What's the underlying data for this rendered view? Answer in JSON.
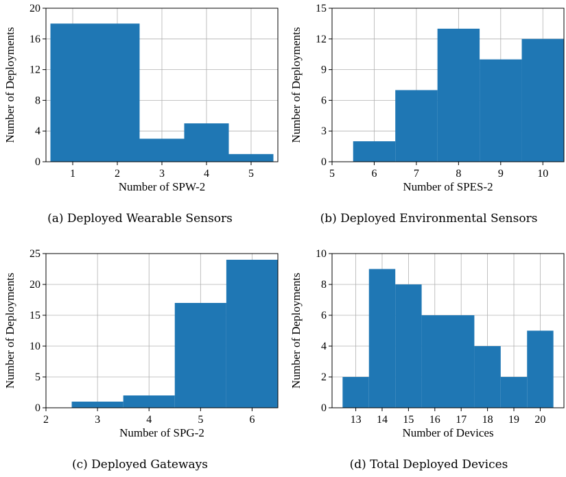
{
  "chart_data": [
    {
      "type": "bar",
      "x": [
        1,
        2,
        3,
        4,
        5
      ],
      "values": [
        18,
        18,
        3,
        5,
        1
      ],
      "xlabel": "Number of SPW-2",
      "ylabel": "Number of Deployments",
      "xlim": [
        0.4,
        5.6
      ],
      "ylim": [
        0,
        20
      ],
      "xticks": [
        1,
        2,
        3,
        4,
        5
      ],
      "yticks": [
        0,
        4,
        8,
        12,
        16,
        20
      ],
      "grid": true,
      "color": "#1f77b4",
      "caption": "(a) Deployed Wearable Sensors"
    },
    {
      "type": "bar",
      "x": [
        6,
        7,
        8,
        9,
        10
      ],
      "values": [
        2,
        7,
        13,
        10,
        12
      ],
      "xlabel": "Number of SPES-2",
      "ylabel": "Number of Deployments",
      "xlim": [
        5,
        10.5
      ],
      "ylim": [
        0,
        15
      ],
      "xticks": [
        5,
        6,
        7,
        8,
        9,
        10
      ],
      "yticks": [
        0,
        3,
        6,
        9,
        12,
        15
      ],
      "grid": true,
      "color": "#1f77b4",
      "caption": "(b) Deployed Environmental Sensors"
    },
    {
      "type": "bar",
      "x": [
        3,
        4,
        5,
        6
      ],
      "values": [
        1,
        2,
        17,
        24
      ],
      "xlabel": "Number of SPG-2",
      "ylabel": "Number of Deployments",
      "xlim": [
        2,
        6.5
      ],
      "ylim": [
        0,
        25
      ],
      "xticks": [
        2,
        3,
        4,
        5,
        6
      ],
      "yticks": [
        0,
        5,
        10,
        15,
        20,
        25
      ],
      "grid": true,
      "color": "#1f77b4",
      "caption": "(c) Deployed Gateways"
    },
    {
      "type": "bar",
      "x": [
        13,
        14,
        15,
        16,
        17,
        18,
        19,
        20
      ],
      "values": [
        2,
        9,
        8,
        6,
        6,
        4,
        2,
        5
      ],
      "xlabel": "Number of Devices",
      "ylabel": "Number of Deployments",
      "xlim": [
        12.1,
        20.9
      ],
      "ylim": [
        0,
        10
      ],
      "xticks": [
        13,
        14,
        15,
        16,
        17,
        18,
        19,
        20
      ],
      "yticks": [
        0,
        2,
        4,
        6,
        8,
        10
      ],
      "grid": true,
      "color": "#1f77b4",
      "caption": "(d) Total Deployed Devices"
    }
  ]
}
